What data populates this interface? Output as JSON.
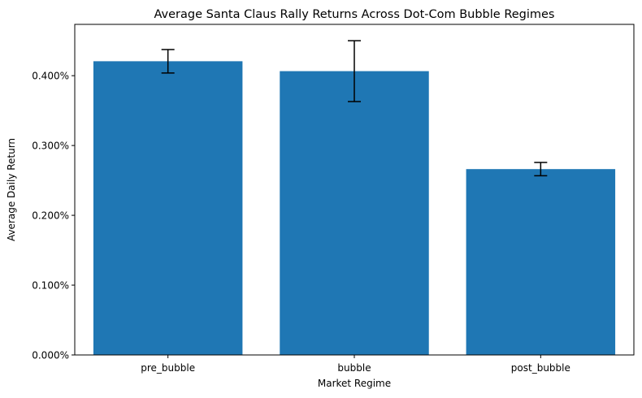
{
  "chart_data": {
    "type": "bar",
    "title": "Average Santa Claus Rally Returns Across Dot-Com Bubble Regimes",
    "xlabel": "Market Regime",
    "ylabel": "Average Daily Return",
    "categories": [
      "pre_bubble",
      "bubble",
      "post_bubble"
    ],
    "values": [
      0.4207,
      0.4065,
      0.2662
    ],
    "error": [
      0.0168,
      0.0436,
      0.0095
    ],
    "value_unit": "percent",
    "ylim": [
      0,
      0.4735
    ],
    "yticks": [
      0.0,
      0.1,
      0.2,
      0.3,
      0.4
    ],
    "ytick_labels": [
      "0.000%",
      "0.100%",
      "0.200%",
      "0.300%",
      "0.400%"
    ],
    "grid": false,
    "legend": "none",
    "bar_color": "#1f77b4",
    "error_color": "#000000"
  }
}
